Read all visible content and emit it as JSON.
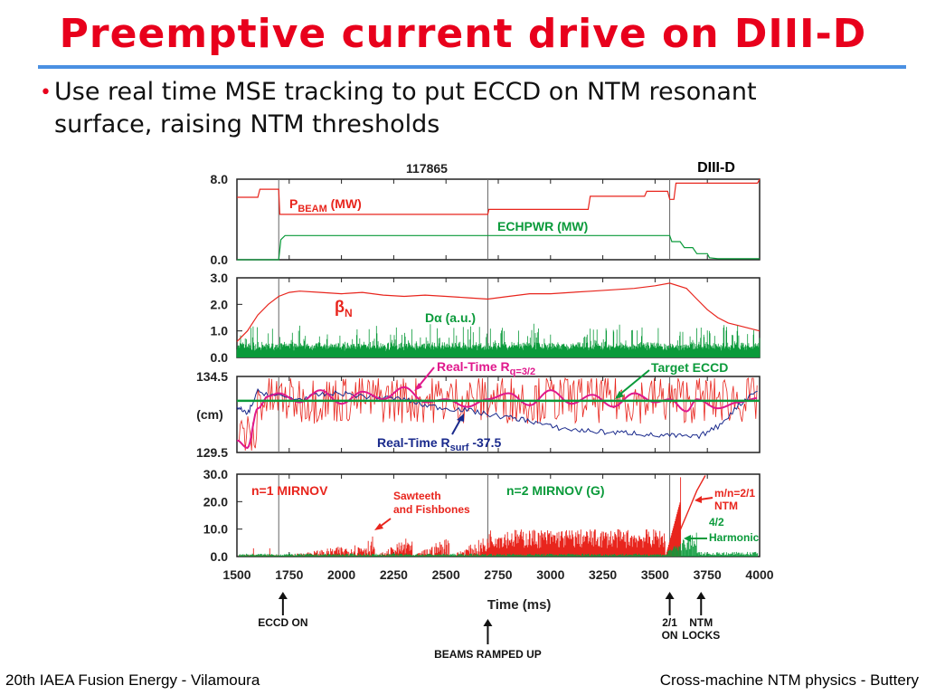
{
  "slide": {
    "title": "Preemptive current drive on DIII-D",
    "bullet": "Use real time  MSE tracking to put ECCD on NTM resonant surface, raising NTM thresholds",
    "footer_left": "20th IAEA Fusion Energy - Vilamoura",
    "footer_right": "Cross-machine NTM physics - Buttery"
  },
  "chart_data": {
    "type": "line",
    "shot": "117865",
    "device_label": "DIII-D",
    "xlabel": "Time (ms)",
    "xlim": [
      1500,
      4000
    ],
    "xticks": [
      "1500",
      "1750",
      "2000",
      "2250",
      "2500",
      "2750",
      "3000",
      "3250",
      "3500",
      "3750",
      "4000"
    ],
    "event_lines_ms": [
      1700,
      2700,
      3570
    ],
    "events": [
      {
        "label_lines": [
          "ECCD ON"
        ],
        "t": 1720
      },
      {
        "label_lines": [
          "BEAMS RAMPED UP"
        ],
        "t": 2700
      },
      {
        "label_lines": [
          "2/1",
          "ON"
        ],
        "t": 3570
      },
      {
        "label_lines": [
          "NTM",
          "LOCKS"
        ],
        "t": 3720
      }
    ],
    "colors": {
      "red": "#e8251d",
      "green": "#0a9a3a",
      "navy": "#1a2a8c",
      "magenta": "#e0188c",
      "frame": "#222222"
    },
    "panels": [
      {
        "ylim": [
          0,
          8
        ],
        "yticks": [
          "8.0",
          "0.0"
        ],
        "series": [
          {
            "name": "PBEAM (MW)",
            "color": "#e8251d",
            "x": [
              1500,
              1600,
              1610,
              1700,
              1705,
              2700,
              2705,
              3180,
              3190,
              3450,
              3460,
              3560,
              3570,
              3590,
              3600,
              3990,
              4000
            ],
            "y": [
              6.2,
              6.2,
              7.0,
              7.0,
              4.5,
              4.5,
              5.0,
              5.0,
              6.3,
              6.3,
              6.8,
              6.8,
              6.0,
              6.0,
              7.6,
              7.6,
              8.0
            ]
          },
          {
            "name": "ECHPWR (MW)",
            "color": "#0a9a3a",
            "x": [
              1500,
              1700,
              1710,
              1730,
              3570,
              3580,
              3620,
              3640,
              3680,
              3700,
              3750,
              3760,
              3800,
              4000
            ],
            "y": [
              0,
              0,
              2.0,
              2.4,
              2.4,
              1.8,
              1.8,
              1.2,
              1.2,
              0.6,
              0.6,
              0.2,
              0.1,
              0.1
            ]
          }
        ],
        "labels": [
          {
            "text": "P",
            "sub": "BEAM",
            "rest": " (MW)",
            "series": 0
          },
          {
            "text": "ECHPWR (MW)",
            "series": 1
          }
        ]
      },
      {
        "ylim": [
          0,
          3
        ],
        "yticks": [
          "3.0",
          "2.0",
          "1.0",
          "0.0"
        ],
        "series": [
          {
            "name": "βN",
            "color": "#e8251d",
            "x": [
              1500,
              1550,
              1600,
              1650,
              1700,
              1750,
              1800,
              1900,
              2000,
              2100,
              2200,
              2300,
              2400,
              2500,
              2600,
              2700,
              2800,
              2900,
              3000,
              3100,
              3200,
              3300,
              3400,
              3500,
              3570,
              3650,
              3700,
              3750,
              3800,
              3850,
              3900,
              4000
            ],
            "y": [
              0.6,
              1.0,
              1.6,
              2.0,
              2.3,
              2.45,
              2.5,
              2.45,
              2.4,
              2.45,
              2.35,
              2.3,
              2.35,
              2.3,
              2.25,
              2.2,
              2.3,
              2.4,
              2.4,
              2.45,
              2.5,
              2.55,
              2.6,
              2.7,
              2.8,
              2.6,
              2.2,
              1.8,
              1.5,
              1.3,
              1.2,
              1.0
            ]
          },
          {
            "name": "Dα (a.u.)",
            "color": "#0a9a3a",
            "baseline": 0.4,
            "noise": 0.9
          }
        ],
        "labels": [
          {
            "text": "β",
            "sub": "N"
          },
          {
            "text": "D",
            "greek": "α",
            "rest": " (a.u.)"
          }
        ]
      },
      {
        "ylim": [
          129.5,
          134.5
        ],
        "yticks": [
          "134.5",
          "129.5"
        ],
        "ylabel": "(cm)",
        "target": 132.9,
        "series": [
          {
            "name": "Real-Time Rq=3/2",
            "color": "#e0188c",
            "x": [
              1500,
              1550,
              1600,
              1650,
              1700,
              1800,
              1900,
              2000,
              2100,
              2200,
              2300,
              2400,
              2500,
              2600,
              2700,
              2800,
              2900,
              3000,
              3100,
              3200,
              3300,
              3400,
              3500,
              3570,
              3650,
              3700,
              3800,
              3900,
              4000
            ],
            "y": [
              130.3,
              129.8,
              132.4,
              133.2,
              133.4,
              132.8,
              133.6,
              132.7,
              133.5,
              133.0,
              133.8,
              132.8,
              133.0,
              132.5,
              133.0,
              133.4,
              132.6,
              133.6,
              132.7,
              133.3,
              132.5,
              133.4,
              132.8,
              133.0,
              132.2,
              133.0,
              132.4,
              132.8,
              133.1
            ]
          },
          {
            "name": "Real-Time Rsurf -37.5",
            "color": "#1a2a8c",
            "x": [
              1500,
              1550,
              1600,
              1700,
              1800,
              1900,
              2000,
              2100,
              2200,
              2300,
              2400,
              2500,
              2600,
              2700,
              2800,
              2900,
              3000,
              3100,
              3200,
              3300,
              3400,
              3500,
              3600,
              3700,
              3800,
              3900,
              4000
            ],
            "y": [
              132.5,
              132.0,
              133.5,
              133.2,
              133.0,
              133.3,
              133.4,
              133.2,
              133.1,
              133.0,
              132.6,
              132.4,
              132.3,
              132.0,
              131.8,
              131.6,
              131.2,
              131.0,
              130.9,
              130.8,
              130.8,
              130.6,
              130.6,
              130.5,
              131.2,
              132.6,
              133.8
            ]
          },
          {
            "name": "noise",
            "color": "#e8251d",
            "center": 133.0,
            "noise": 1.6
          }
        ],
        "annotations": [
          "Real-Time R",
          "q=3/2",
          "Target ECCD",
          "Real-Time R",
          "surf",
          " -37.5"
        ]
      },
      {
        "ylim": [
          0,
          30
        ],
        "yticks": [
          "30.0",
          "20.0",
          "10.0",
          "0.0"
        ],
        "series": [
          {
            "name": "n=1 MIRNOV",
            "color": "#e8251d"
          },
          {
            "name": "n=2 MIRNOV (G)",
            "color": "#0a9a3a"
          }
        ],
        "labels": [
          "n=1 MIRNOV",
          "n=2 MIRNOV (G)"
        ],
        "annotations": [
          {
            "lines": [
              "Sawteeth",
              "and Fishbones"
            ]
          },
          {
            "lines": [
              "m/n=2/1",
              "NTM"
            ]
          },
          {
            "lines": [
              "4/2",
              "Harmonic"
            ]
          }
        ]
      }
    ]
  }
}
